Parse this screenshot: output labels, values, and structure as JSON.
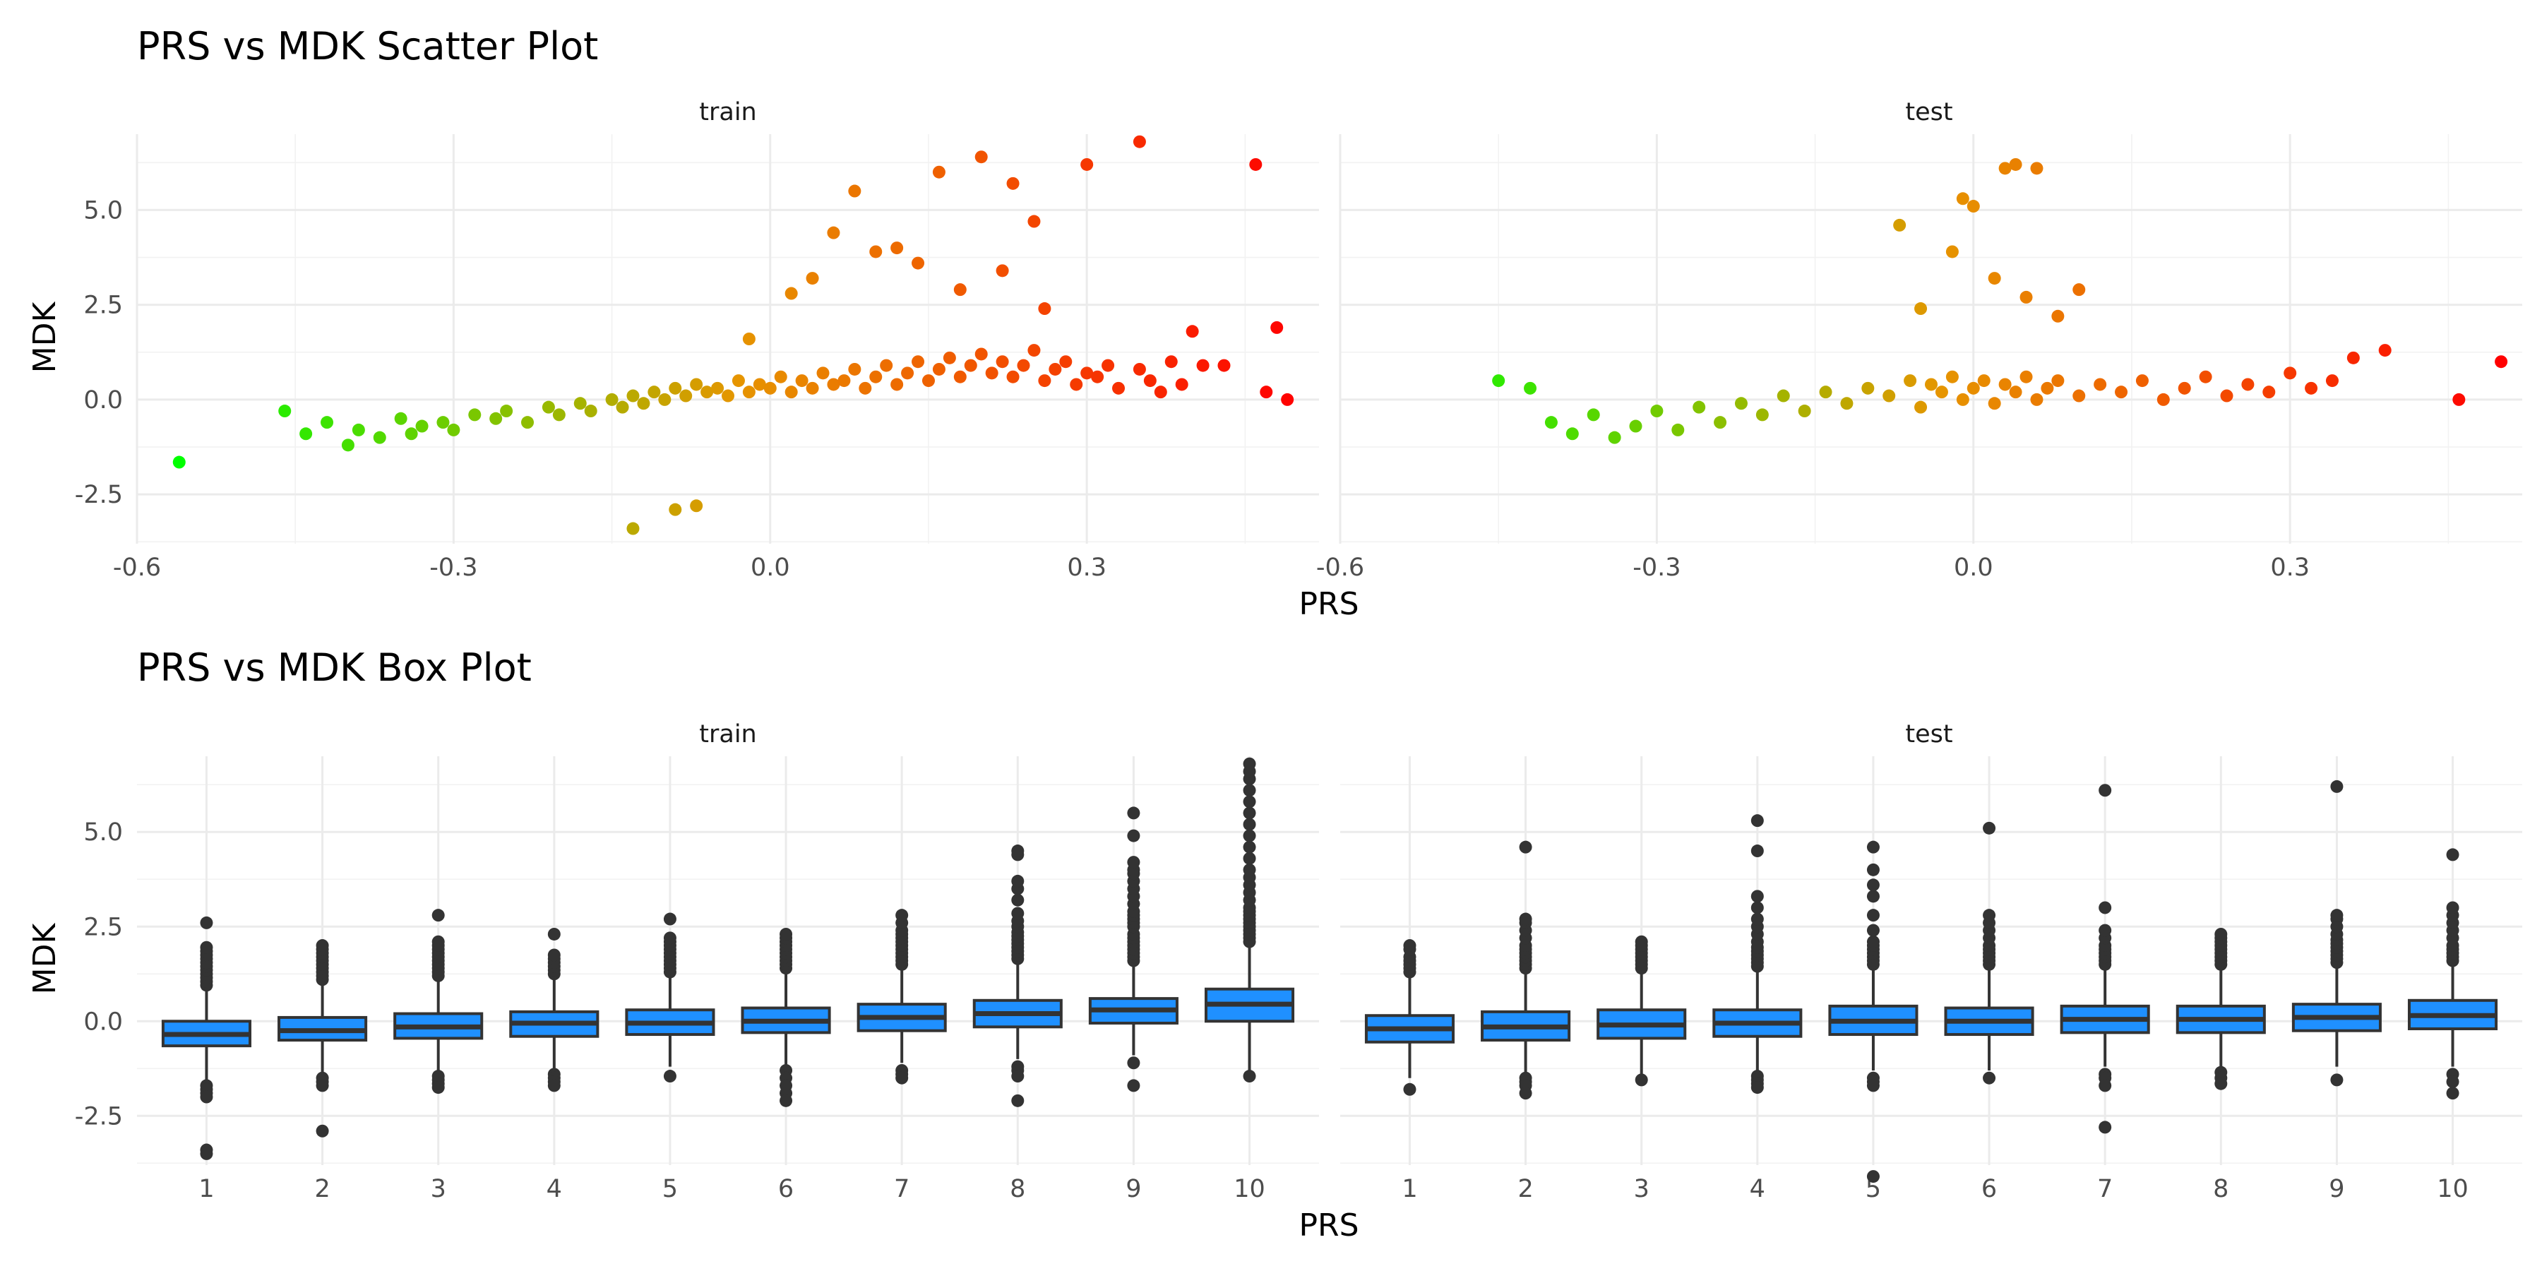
{
  "chart_data": [
    {
      "type": "scatter",
      "title": "PRS vs MDK Scatter Plot",
      "xlabel": "PRS",
      "ylabel": "MDK",
      "xlim": [
        -0.6,
        0.52
      ],
      "ylim": [
        -3.8,
        7.0
      ],
      "x_ticks": [
        "-0.6",
        "-0.3",
        "0.0",
        "0.3"
      ],
      "y_ticks": [
        "-2.5",
        "0.0",
        "2.5",
        "5.0"
      ],
      "color_scale": {
        "low": "#00ff00",
        "mid": "#e69500",
        "high": "#ff0000",
        "low_value": -0.56,
        "high_value": 0.5
      },
      "grid": true,
      "legend": "none",
      "facets": [
        {
          "label": "train",
          "x": [
            -0.56,
            -0.46,
            -0.44,
            -0.42,
            -0.4,
            -0.39,
            -0.37,
            -0.35,
            -0.34,
            -0.33,
            -0.31,
            -0.3,
            -0.28,
            -0.26,
            -0.25,
            -0.23,
            -0.21,
            -0.2,
            -0.18,
            -0.17,
            -0.15,
            -0.14,
            -0.13,
            -0.12,
            -0.11,
            -0.1,
            -0.09,
            -0.08,
            -0.07,
            -0.06,
            -0.05,
            -0.04,
            -0.03,
            -0.02,
            -0.01,
            0.0,
            0.01,
            0.02,
            0.03,
            0.04,
            0.05,
            0.06,
            0.07,
            0.08,
            0.09,
            0.1,
            0.11,
            0.12,
            0.13,
            0.14,
            0.15,
            0.16,
            0.17,
            0.18,
            0.19,
            0.2,
            0.21,
            0.22,
            0.23,
            0.24,
            0.25,
            0.26,
            0.27,
            0.28,
            0.29,
            0.3,
            0.31,
            0.32,
            0.33,
            0.35,
            0.36,
            0.37,
            0.38,
            0.39,
            0.4,
            0.41,
            0.43,
            0.46,
            0.47,
            0.48,
            0.49,
            -0.13,
            -0.07,
            -0.09,
            0.06,
            0.08,
            0.12,
            0.16,
            0.2,
            0.23,
            0.25,
            0.3,
            0.35,
            -0.02,
            0.02,
            0.04,
            0.1,
            0.14,
            0.18,
            0.22,
            0.26
          ],
          "y": [
            -1.65,
            -0.3,
            -0.9,
            -0.6,
            -1.2,
            -0.8,
            -1.0,
            -0.5,
            -0.9,
            -0.7,
            -0.6,
            -0.8,
            -0.4,
            -0.5,
            -0.3,
            -0.6,
            -0.2,
            -0.4,
            -0.1,
            -0.3,
            0.0,
            -0.2,
            0.1,
            -0.1,
            0.2,
            0.0,
            0.3,
            0.1,
            0.4,
            0.2,
            0.3,
            0.1,
            0.5,
            0.2,
            0.4,
            0.3,
            0.6,
            0.2,
            0.5,
            0.3,
            0.7,
            0.4,
            0.5,
            0.8,
            0.3,
            0.6,
            0.9,
            0.4,
            0.7,
            1.0,
            0.5,
            0.8,
            1.1,
            0.6,
            0.9,
            1.2,
            0.7,
            1.0,
            0.6,
            0.9,
            1.3,
            0.5,
            0.8,
            1.0,
            0.4,
            0.7,
            0.6,
            0.9,
            0.3,
            0.8,
            0.5,
            0.2,
            1.0,
            0.4,
            1.8,
            0.9,
            0.9,
            6.2,
            0.2,
            1.9,
            0.0,
            -3.4,
            -2.8,
            -2.9,
            4.4,
            5.5,
            4.0,
            6.0,
            6.4,
            5.7,
            4.7,
            6.2,
            6.8,
            1.6,
            2.8,
            3.2,
            3.9,
            3.6,
            2.9,
            3.4,
            2.4
          ]
        },
        {
          "label": "test",
          "x": [
            -0.45,
            -0.42,
            -0.4,
            -0.38,
            -0.36,
            -0.34,
            -0.32,
            -0.3,
            -0.28,
            -0.26,
            -0.24,
            -0.22,
            -0.2,
            -0.18,
            -0.16,
            -0.14,
            -0.12,
            -0.1,
            -0.08,
            -0.06,
            -0.05,
            -0.04,
            -0.03,
            -0.02,
            -0.01,
            0.0,
            0.01,
            0.02,
            0.03,
            0.04,
            0.05,
            0.06,
            0.07,
            0.08,
            0.1,
            0.12,
            0.14,
            0.16,
            0.18,
            0.2,
            0.22,
            0.24,
            0.26,
            0.28,
            0.3,
            0.32,
            0.34,
            0.36,
            0.39,
            0.46,
            0.5,
            -0.07,
            -0.01,
            0.0,
            0.03,
            0.04,
            0.06,
            0.1,
            -0.02,
            0.02,
            0.05,
            -0.05,
            0.08
          ],
          "y": [
            0.5,
            0.3,
            -0.6,
            -0.9,
            -0.4,
            -1.0,
            -0.7,
            -0.3,
            -0.8,
            -0.2,
            -0.6,
            -0.1,
            -0.4,
            0.1,
            -0.3,
            0.2,
            -0.1,
            0.3,
            0.1,
            0.5,
            -0.2,
            0.4,
            0.2,
            0.6,
            0.0,
            0.3,
            0.5,
            -0.1,
            0.4,
            0.2,
            0.6,
            0.0,
            0.3,
            0.5,
            0.1,
            0.4,
            0.2,
            0.5,
            0.0,
            0.3,
            0.6,
            0.1,
            0.4,
            0.2,
            0.7,
            0.3,
            0.5,
            1.1,
            1.3,
            0.0,
            1.0,
            4.6,
            5.3,
            5.1,
            6.1,
            6.2,
            6.1,
            2.9,
            3.9,
            3.2,
            2.7,
            2.4,
            2.2
          ]
        }
      ]
    },
    {
      "type": "box",
      "title": "PRS vs MDK Box Plot",
      "xlabel": "PRS",
      "ylabel": "MDK",
      "categories": [
        "1",
        "2",
        "3",
        "4",
        "5",
        "6",
        "7",
        "8",
        "9",
        "10"
      ],
      "ylim": [
        -3.8,
        7.0
      ],
      "y_ticks": [
        "-2.5",
        "0.0",
        "2.5",
        "5.0"
      ],
      "box_color": "#1f90ff",
      "grid": true,
      "legend": "none",
      "facets": [
        {
          "label": "train",
          "boxes": [
            {
              "low": -1.6,
              "q1": -0.65,
              "median": -0.35,
              "q3": 0.0,
              "high": 0.9,
              "outliers": [
                0.95,
                1.05,
                1.15,
                1.25,
                1.35,
                1.45,
                1.55,
                1.65,
                1.75,
                1.85,
                1.95,
                2.6,
                -1.7,
                -1.8,
                -1.9,
                -2.0,
                -3.4,
                -3.5
              ]
            },
            {
              "low": -1.4,
              "q1": -0.5,
              "median": -0.25,
              "q3": 0.1,
              "high": 1.0,
              "outliers": [
                1.1,
                1.2,
                1.3,
                1.4,
                1.5,
                1.6,
                1.7,
                1.8,
                1.9,
                2.0,
                -1.5,
                -1.6,
                -1.7,
                -2.9
              ]
            },
            {
              "low": -1.3,
              "q1": -0.45,
              "median": -0.15,
              "q3": 0.2,
              "high": 1.1,
              "outliers": [
                1.2,
                1.3,
                1.4,
                1.5,
                1.6,
                1.7,
                1.8,
                1.9,
                2.0,
                2.1,
                2.8,
                -1.45,
                -1.55,
                -1.65,
                -1.75
              ]
            },
            {
              "low": -1.3,
              "q1": -0.4,
              "median": -0.05,
              "q3": 0.25,
              "high": 1.15,
              "outliers": [
                1.25,
                1.35,
                1.45,
                1.55,
                1.65,
                1.75,
                2.3,
                -1.4,
                -1.5,
                -1.6,
                -1.7
              ]
            },
            {
              "low": -1.2,
              "q1": -0.35,
              "median": -0.05,
              "q3": 0.3,
              "high": 1.2,
              "outliers": [
                1.3,
                1.4,
                1.5,
                1.6,
                1.7,
                1.8,
                1.9,
                2.0,
                2.1,
                2.2,
                2.7,
                -1.45
              ]
            },
            {
              "low": -1.2,
              "q1": -0.3,
              "median": 0.0,
              "q3": 0.35,
              "high": 1.3,
              "outliers": [
                1.4,
                1.5,
                1.6,
                1.7,
                1.8,
                1.9,
                2.0,
                2.1,
                2.2,
                2.3,
                -1.3,
                -1.5,
                -1.7,
                -1.9,
                -2.1
              ]
            },
            {
              "low": -1.1,
              "q1": -0.25,
              "median": 0.1,
              "q3": 0.45,
              "high": 1.4,
              "outliers": [
                1.5,
                1.6,
                1.7,
                1.8,
                1.9,
                2.0,
                2.1,
                2.2,
                2.3,
                2.4,
                2.6,
                2.8,
                -1.3,
                -1.4,
                -1.5
              ]
            },
            {
              "low": -1.0,
              "q1": -0.15,
              "median": 0.2,
              "q3": 0.55,
              "high": 1.55,
              "outliers": [
                1.65,
                1.75,
                1.85,
                1.95,
                2.05,
                2.15,
                2.25,
                2.35,
                2.5,
                2.65,
                2.85,
                3.2,
                3.5,
                3.7,
                4.4,
                4.5,
                -1.2,
                -1.3,
                -1.45,
                -2.1
              ]
            },
            {
              "low": -0.9,
              "q1": -0.05,
              "median": 0.3,
              "q3": 0.6,
              "high": 1.5,
              "outliers": [
                1.6,
                1.7,
                1.8,
                1.9,
                2.0,
                2.1,
                2.2,
                2.3,
                2.5,
                2.6,
                2.7,
                2.8,
                2.9,
                3.1,
                3.3,
                3.5,
                3.7,
                3.9,
                4.0,
                4.2,
                4.9,
                5.5,
                -1.1,
                -1.7
              ]
            },
            {
              "low": -1.35,
              "q1": 0.0,
              "median": 0.45,
              "q3": 0.85,
              "high": 2.0,
              "outliers": [
                2.1,
                2.2,
                2.3,
                2.4,
                2.5,
                2.6,
                2.7,
                2.8,
                2.9,
                3.0,
                3.2,
                3.4,
                3.6,
                3.8,
                4.0,
                4.3,
                4.6,
                4.9,
                5.2,
                5.5,
                5.8,
                6.1,
                6.4,
                6.6,
                6.8,
                -1.45
              ]
            }
          ]
        },
        {
          "label": "test",
          "boxes": [
            {
              "low": -1.5,
              "q1": -0.55,
              "median": -0.2,
              "q3": 0.15,
              "high": 1.2,
              "outliers": [
                1.3,
                1.4,
                1.5,
                1.6,
                1.7,
                1.9,
                2.0,
                -1.8
              ]
            },
            {
              "low": -1.4,
              "q1": -0.5,
              "median": -0.15,
              "q3": 0.25,
              "high": 1.3,
              "outliers": [
                1.4,
                1.5,
                1.6,
                1.7,
                1.8,
                1.9,
                2.0,
                2.2,
                2.4,
                2.6,
                2.7,
                4.6,
                -1.5,
                -1.6,
                -1.7,
                -1.9
              ]
            },
            {
              "low": -1.4,
              "q1": -0.45,
              "median": -0.1,
              "q3": 0.3,
              "high": 1.3,
              "outliers": [
                1.4,
                1.5,
                1.6,
                1.7,
                1.8,
                1.9,
                2.0,
                2.1,
                -1.55
              ]
            },
            {
              "low": -1.3,
              "q1": -0.4,
              "median": -0.05,
              "q3": 0.3,
              "high": 1.35,
              "outliers": [
                1.45,
                1.55,
                1.65,
                1.75,
                1.85,
                1.95,
                2.1,
                2.3,
                2.5,
                2.7,
                3.0,
                3.3,
                4.5,
                5.3,
                -1.45,
                -1.55,
                -1.65,
                -1.75
              ]
            },
            {
              "low": -1.3,
              "q1": -0.35,
              "median": 0.0,
              "q3": 0.4,
              "high": 1.4,
              "outliers": [
                1.5,
                1.6,
                1.7,
                1.8,
                1.9,
                2.0,
                2.1,
                2.4,
                2.8,
                3.3,
                3.6,
                4.0,
                4.6,
                -1.5,
                -1.6,
                -1.7,
                -4.1
              ]
            },
            {
              "low": -1.3,
              "q1": -0.35,
              "median": 0.0,
              "q3": 0.35,
              "high": 1.4,
              "outliers": [
                1.5,
                1.6,
                1.7,
                1.8,
                1.9,
                2.0,
                2.2,
                2.4,
                2.6,
                2.8,
                5.1,
                -1.5
              ]
            },
            {
              "low": -1.2,
              "q1": -0.3,
              "median": 0.05,
              "q3": 0.4,
              "high": 1.4,
              "outliers": [
                1.5,
                1.6,
                1.7,
                1.8,
                1.9,
                2.0,
                2.2,
                2.4,
                3.0,
                6.1,
                -1.4,
                -1.5,
                -1.7,
                -2.8
              ]
            },
            {
              "low": -1.2,
              "q1": -0.3,
              "median": 0.05,
              "q3": 0.4,
              "high": 1.4,
              "outliers": [
                1.5,
                1.6,
                1.7,
                1.8,
                1.9,
                2.0,
                2.1,
                2.2,
                2.3,
                -1.35,
                -1.5,
                -1.65
              ]
            },
            {
              "low": -1.2,
              "q1": -0.25,
              "median": 0.1,
              "q3": 0.45,
              "high": 1.45,
              "outliers": [
                1.55,
                1.65,
                1.75,
                1.85,
                1.95,
                2.05,
                2.15,
                2.3,
                2.5,
                2.7,
                2.8,
                6.2,
                -1.55
              ]
            },
            {
              "low": -1.2,
              "q1": -0.2,
              "median": 0.15,
              "q3": 0.55,
              "high": 1.5,
              "outliers": [
                1.6,
                1.7,
                1.8,
                1.9,
                2.0,
                2.2,
                2.4,
                2.6,
                2.8,
                3.0,
                4.4,
                -1.4,
                -1.6,
                -1.9
              ]
            }
          ]
        }
      ]
    }
  ]
}
